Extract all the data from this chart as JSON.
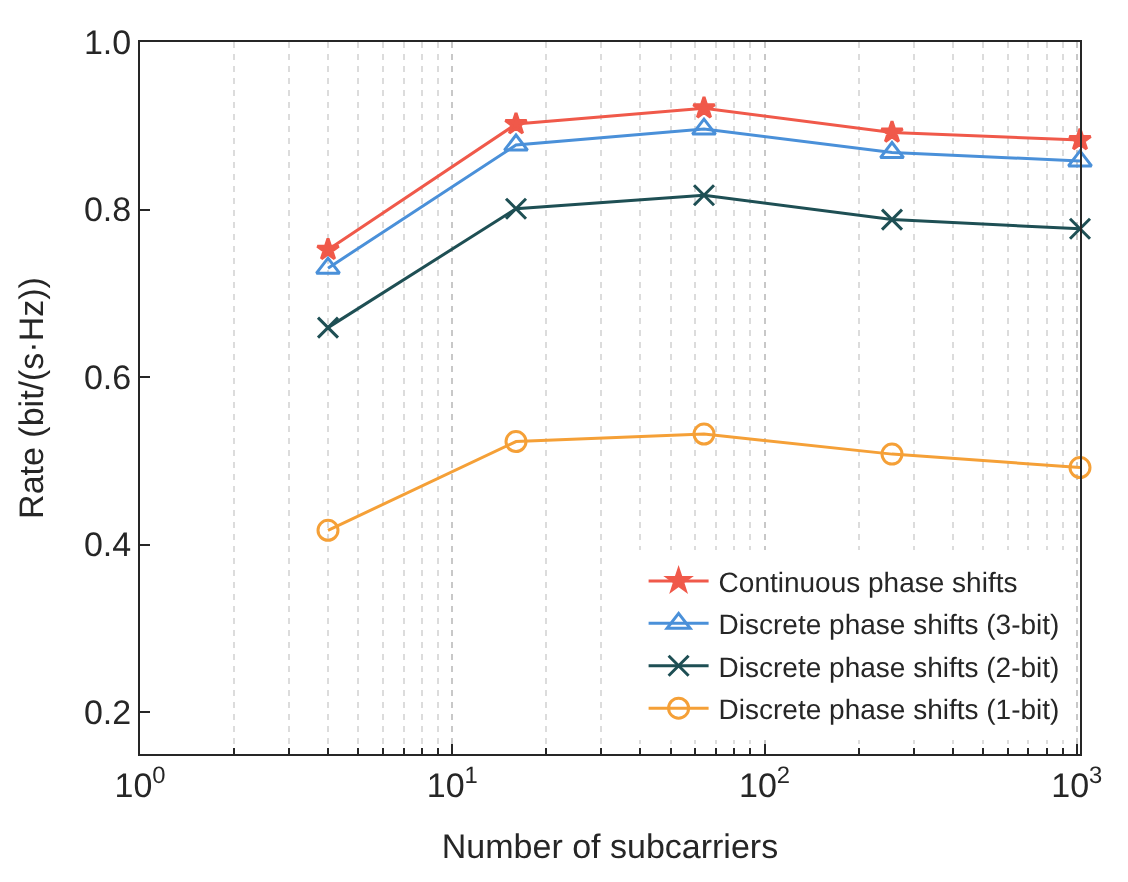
{
  "chart_data": {
    "type": "line",
    "xlabel": "Number of subcarriers",
    "ylabel": "Rate (bit/(s·Hz))",
    "x": [
      4,
      16,
      64,
      256,
      1024
    ],
    "series": [
      {
        "name": "Continuous phase shifts",
        "color": "#f0594a",
        "marker": "star",
        "values": [
          0.752,
          0.902,
          0.921,
          0.892,
          0.883
        ]
      },
      {
        "name": "Discrete phase shifts (3-bit)",
        "color": "#4a90d9",
        "marker": "triangle",
        "values": [
          0.73,
          0.877,
          0.896,
          0.868,
          0.858
        ]
      },
      {
        "name": "Discrete phase shifts (2-bit)",
        "color": "#1e4f54",
        "marker": "cross",
        "values": [
          0.659,
          0.801,
          0.817,
          0.788,
          0.777
        ]
      },
      {
        "name": "Discrete phase shifts (1-bit)",
        "color": "#f5a037",
        "marker": "circle",
        "values": [
          0.417,
          0.523,
          0.532,
          0.508,
          0.492
        ]
      }
    ],
    "log": "x",
    "xlim": [
      1,
      1024
    ],
    "xticks": [
      {
        "value": 1,
        "label": "10$^{0}$"
      },
      {
        "value": 10,
        "label": "10$^{1}$"
      },
      {
        "value": 100,
        "label": "10$^{2}$"
      },
      {
        "value": 1000,
        "label": "10$^{3}$"
      }
    ],
    "ylim": [
      0.15,
      1.0
    ],
    "yticks": [
      0.2,
      0.4,
      0.6,
      0.8,
      {
        "value": 1,
        "label": "1.0"
      }
    ],
    "grid": "x",
    "legend": "bottom right"
  }
}
